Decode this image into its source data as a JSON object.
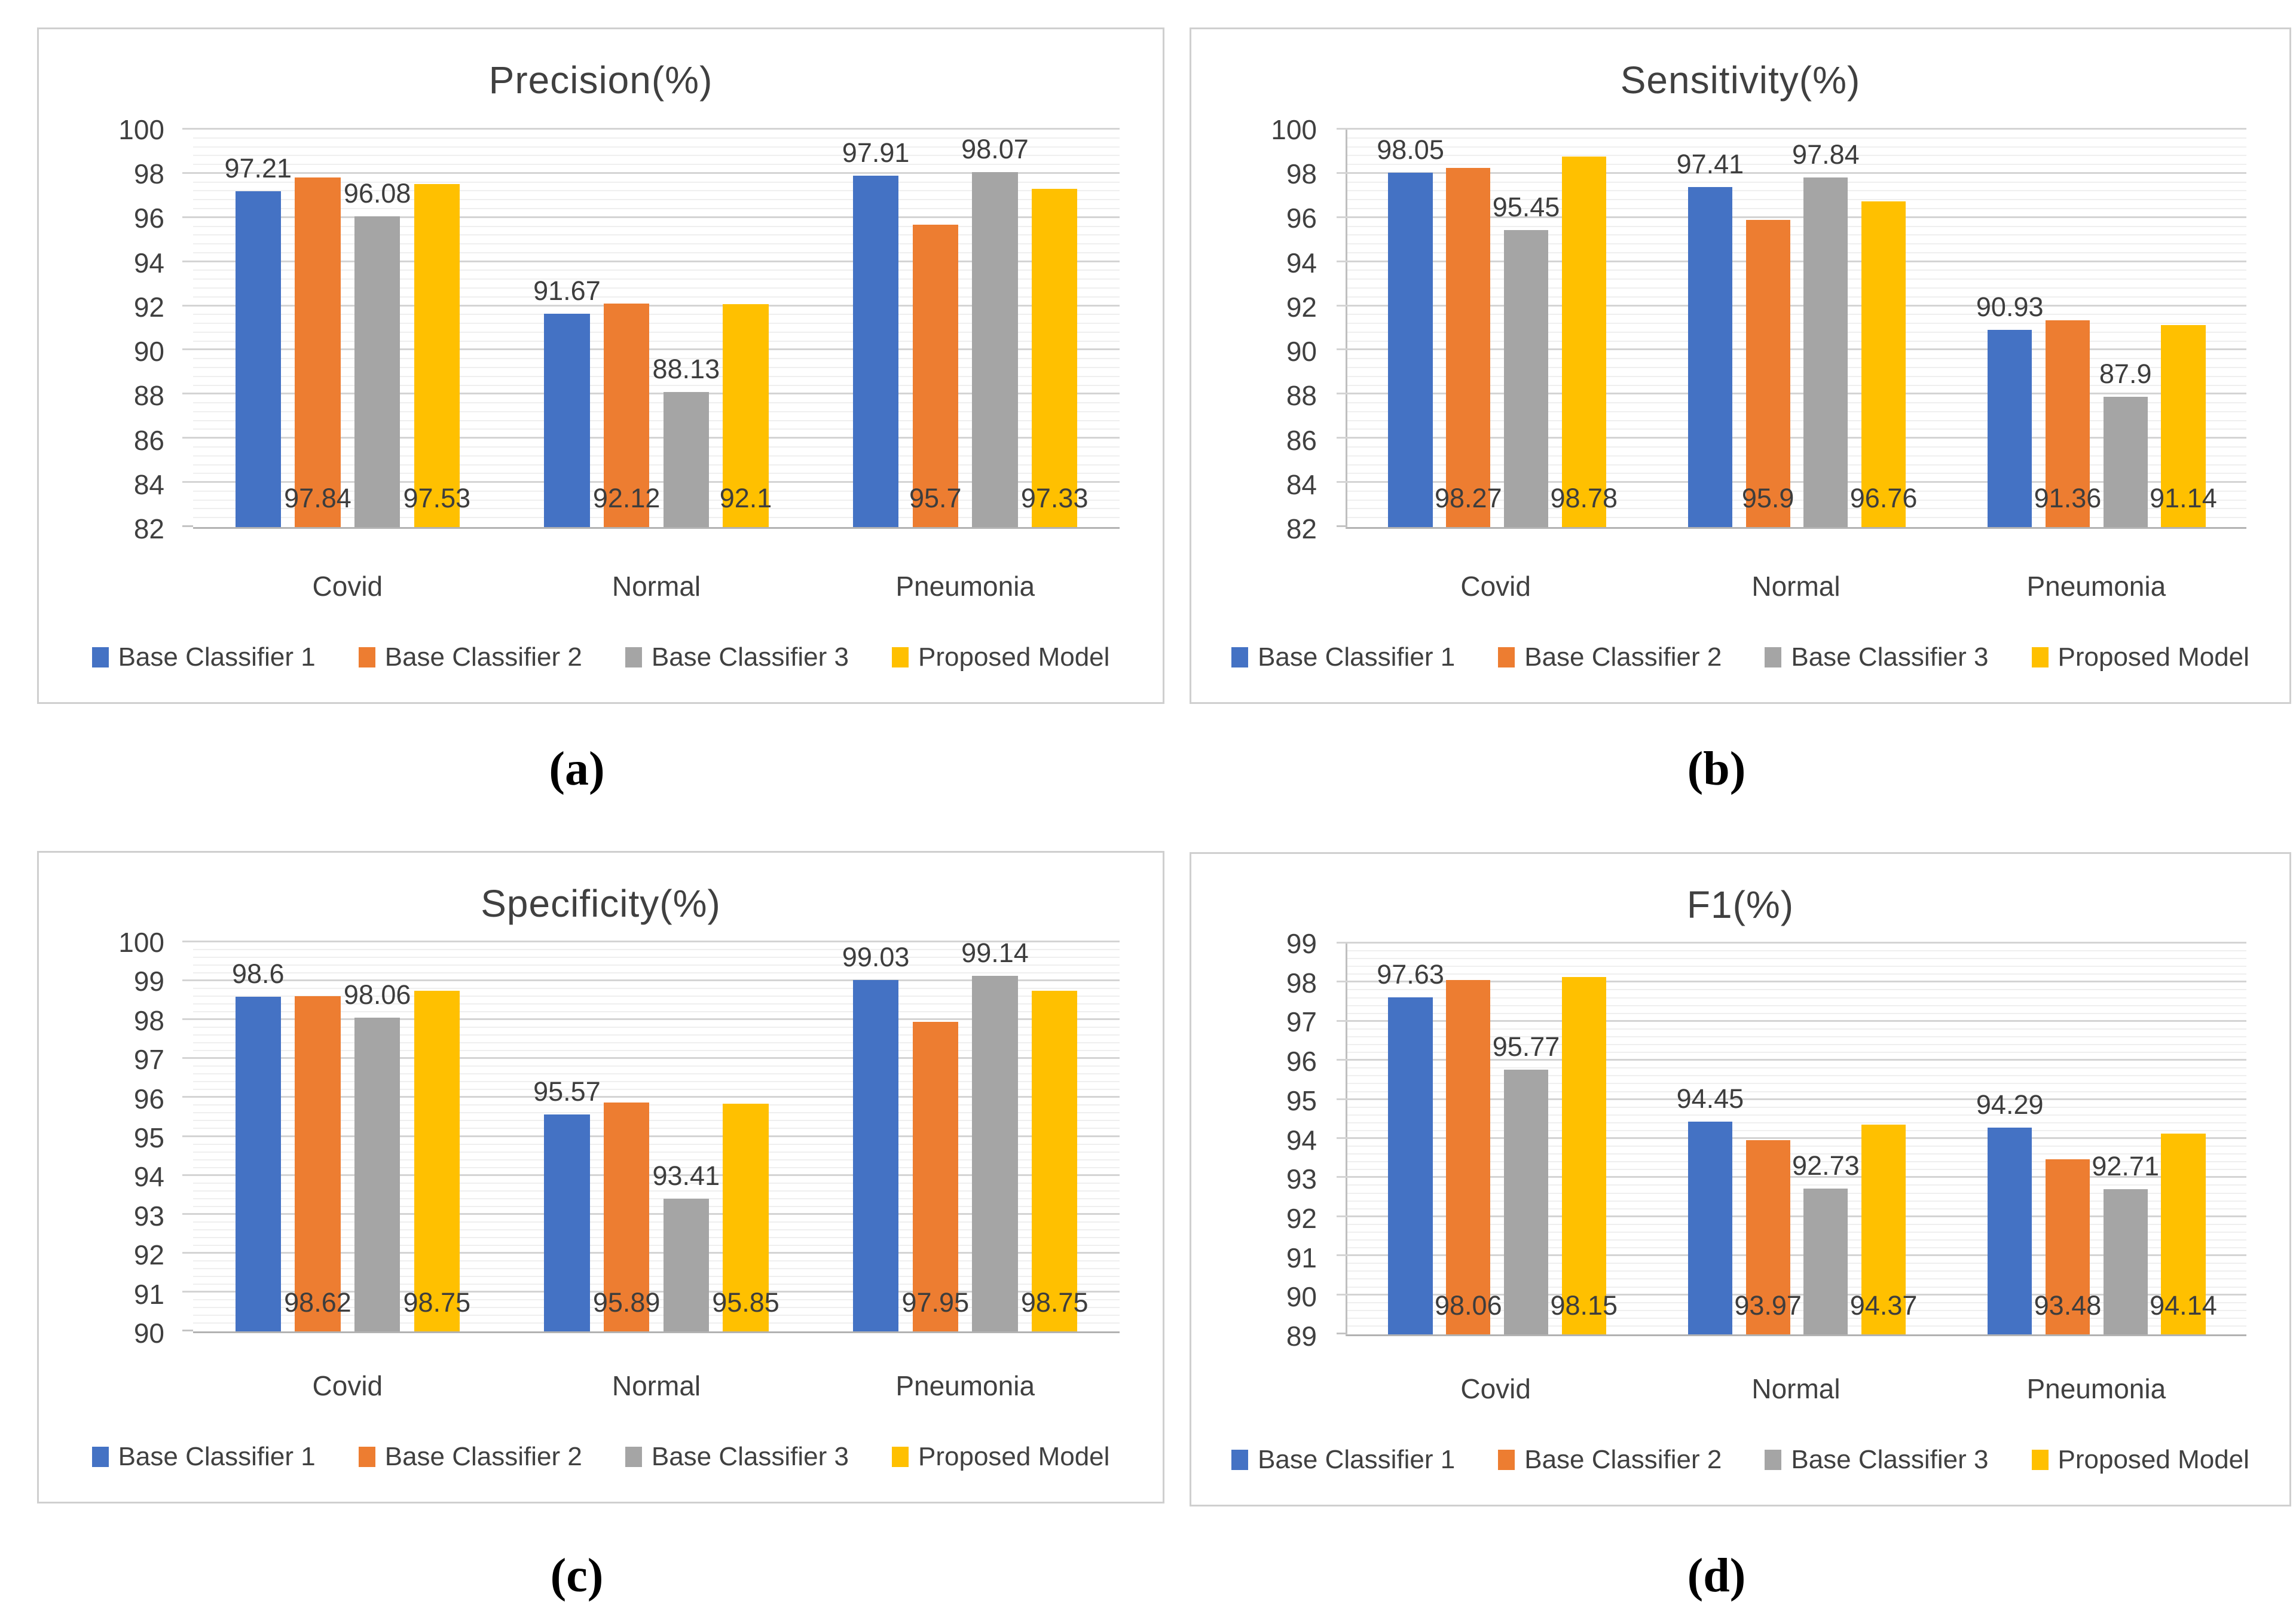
{
  "figure": {
    "captions": [
      "(a)",
      "(b)",
      "(c)",
      "(d)"
    ]
  },
  "chart_data": [
    {
      "id": "a",
      "type": "bar",
      "title": "Precision(%)",
      "categories": [
        "Covid",
        "Normal",
        "Pneumonia"
      ],
      "series": [
        {
          "name": "Base Classifier 1",
          "color": "#4472C4",
          "values": [
            97.21,
            91.67,
            97.91
          ],
          "label_position": "above"
        },
        {
          "name": "Base Classifier 2",
          "color": "#ED7D31",
          "values": [
            97.84,
            92.12,
            95.7
          ],
          "label_position": "inside-base"
        },
        {
          "name": "Base Classifier 3",
          "color": "#A5A5A5",
          "values": [
            96.08,
            88.13,
            98.07
          ],
          "label_position": "above"
        },
        {
          "name": "Proposed Model",
          "color": "#FFC000",
          "values": [
            97.53,
            92.1,
            97.33
          ],
          "label_position": "inside-base"
        }
      ],
      "y_axis": {
        "min": 82,
        "max": 100,
        "major_step": 2,
        "minor_step": 0.4,
        "ticks": [
          100,
          98,
          96,
          94,
          92,
          90,
          88,
          86,
          84,
          82
        ]
      },
      "grid": true,
      "legend_position": "bottom",
      "axis_line_left": false
    },
    {
      "id": "b",
      "type": "bar",
      "title": "Sensitivity(%)",
      "categories": [
        "Covid",
        "Normal",
        "Pneumonia"
      ],
      "series": [
        {
          "name": "Base Classifier 1",
          "color": "#4472C4",
          "values": [
            98.05,
            97.41,
            90.93
          ],
          "label_position": "above"
        },
        {
          "name": "Base Classifier 2",
          "color": "#ED7D31",
          "values": [
            98.27,
            95.9,
            91.36
          ],
          "label_position": "inside-base"
        },
        {
          "name": "Base Classifier 3",
          "color": "#A5A5A5",
          "values": [
            95.45,
            97.84,
            87.9
          ],
          "label_position": "above"
        },
        {
          "name": "Proposed Model",
          "color": "#FFC000",
          "values": [
            98.78,
            96.76,
            91.14
          ],
          "label_position": "inside-base"
        }
      ],
      "y_axis": {
        "min": 82,
        "max": 100,
        "major_step": 2,
        "minor_step": 0.4,
        "ticks": [
          100,
          98,
          96,
          94,
          92,
          90,
          88,
          86,
          84,
          82
        ]
      },
      "grid": true,
      "legend_position": "bottom",
      "axis_line_left": true
    },
    {
      "id": "c",
      "type": "bar",
      "title": "Specificity(%)",
      "categories": [
        "Covid",
        "Normal",
        "Pneumonia"
      ],
      "series": [
        {
          "name": "Base Classifier 1",
          "color": "#4472C4",
          "values": [
            98.6,
            95.57,
            99.03
          ],
          "label_position": "above"
        },
        {
          "name": "Base Classifier 2",
          "color": "#ED7D31",
          "values": [
            98.62,
            95.89,
            97.95
          ],
          "label_position": "inside-base"
        },
        {
          "name": "Base Classifier 3",
          "color": "#A5A5A5",
          "values": [
            98.06,
            93.41,
            99.14
          ],
          "label_position": "above"
        },
        {
          "name": "Proposed Model",
          "color": "#FFC000",
          "values": [
            98.75,
            95.85,
            98.75
          ],
          "label_position": "inside-base"
        }
      ],
      "y_axis": {
        "min": 90,
        "max": 100,
        "major_step": 1,
        "minor_step": 0.2,
        "ticks": [
          100,
          99,
          98,
          97,
          96,
          95,
          94,
          93,
          92,
          91,
          90
        ]
      },
      "grid": true,
      "legend_position": "bottom",
      "axis_line_left": false
    },
    {
      "id": "d",
      "type": "bar",
      "title": "F1(%)",
      "categories": [
        "Covid",
        "Normal",
        "Pneumonia"
      ],
      "series": [
        {
          "name": "Base Classifier 1",
          "color": "#4472C4",
          "values": [
            97.63,
            94.45,
            94.29
          ],
          "label_position": "above"
        },
        {
          "name": "Base Classifier 2",
          "color": "#ED7D31",
          "values": [
            98.06,
            93.97,
            93.48
          ],
          "label_position": "inside-base"
        },
        {
          "name": "Base Classifier 3",
          "color": "#A5A5A5",
          "values": [
            95.77,
            92.73,
            92.71
          ],
          "label_position": "above"
        },
        {
          "name": "Proposed Model",
          "color": "#FFC000",
          "values": [
            98.15,
            94.37,
            94.14
          ],
          "label_position": "inside-base"
        }
      ],
      "y_axis": {
        "min": 89,
        "max": 99,
        "major_step": 1,
        "minor_step": 0.2,
        "ticks": [
          99,
          98,
          97,
          96,
          95,
          94,
          93,
          92,
          91,
          90,
          89
        ]
      },
      "grid": true,
      "legend_position": "bottom",
      "axis_line_left": true
    }
  ]
}
